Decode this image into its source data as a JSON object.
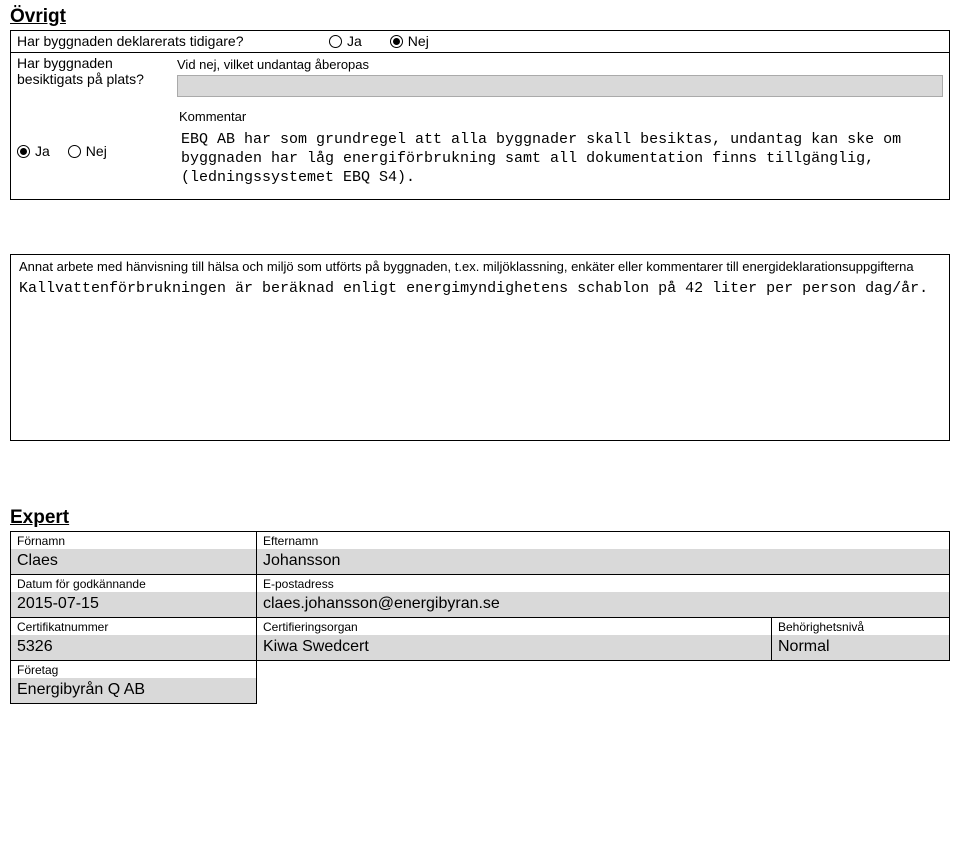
{
  "ovrigt": {
    "title": "Övrigt",
    "q_declared": "Har byggnaden deklarerats tidigare?",
    "q_inspected_line1": "Har byggnaden",
    "q_inspected_line2": "besiktigats på plats?",
    "ja": "Ja",
    "nej": "Nej",
    "vid_nej_label": "Vid nej, vilket undantag åberopas",
    "kommentar_label": "Kommentar",
    "kommentar_text": "EBQ AB har som grundregel att alla byggnader skall besiktas, undantag kan ske om byggnaden har låg energiförbrukning samt all dokumentation finns tillgänglig, (ledningssystemet EBQ S4)."
  },
  "annat": {
    "label": "Annat arbete med hänvisning till hälsa och miljö som utförts på byggnaden, t.ex. miljöklassning, enkäter eller kommentarer till energideklarationsuppgifterna",
    "text": "Kallvattenförbrukningen är beräknad enligt energimyndighetens schablon på 42 liter per person dag/år."
  },
  "expert": {
    "title": "Expert",
    "fornamn_label": "Förnamn",
    "fornamn": "Claes",
    "efternamn_label": "Efternamn",
    "efternamn": "Johansson",
    "datum_label": "Datum för godkännande",
    "datum": "2015-07-15",
    "epost_label": "E-postadress",
    "epost": "claes.johansson@energibyran.se",
    "cert_label": "Certifikatnummer",
    "cert": "5326",
    "certorg_label": "Certifieringsorgan",
    "certorg": "Kiwa Swedcert",
    "behor_label": "Behörighetsnivå",
    "behor": "Normal",
    "foretag_label": "Företag",
    "foretag": "Energibyrån Q AB"
  }
}
